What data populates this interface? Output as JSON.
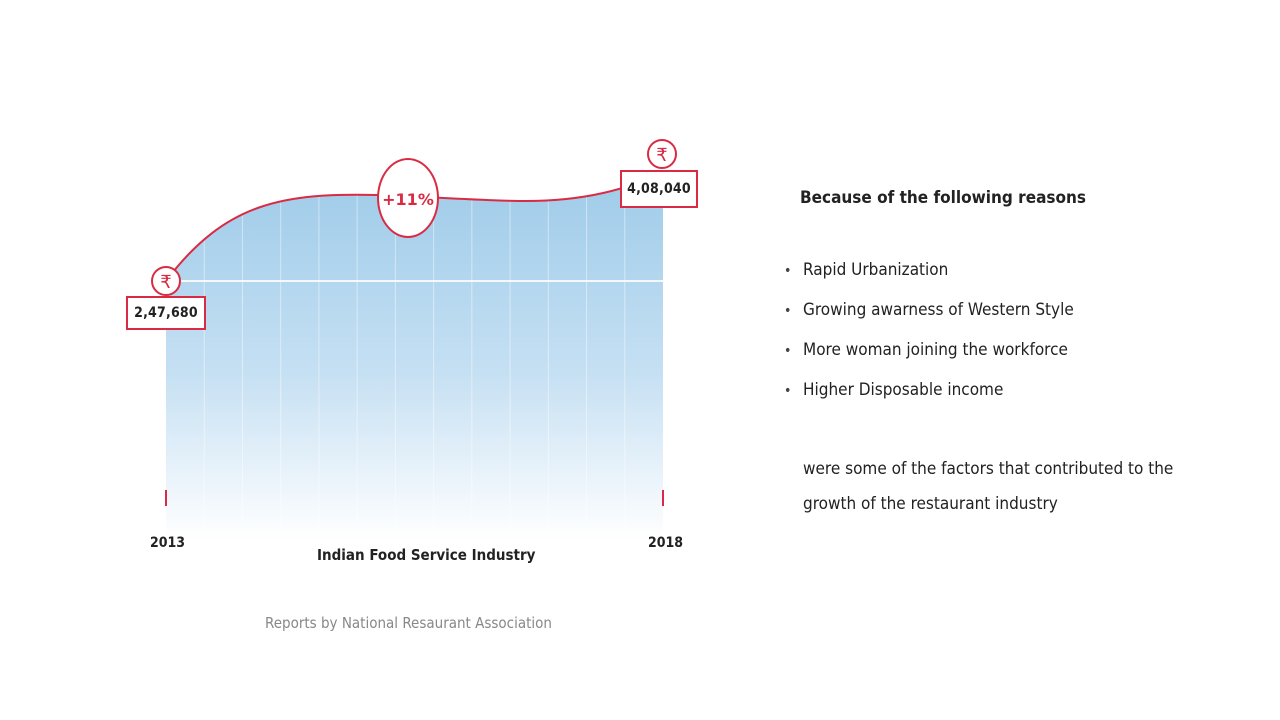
{
  "chart_data": {
    "type": "area",
    "title": "",
    "xlabel": "Indian Food Service Industry",
    "ylabel": "",
    "x": [
      "2013",
      "2018"
    ],
    "series": [
      {
        "values": [
          247680,
          408040
        ],
        "value_labels": [
          "2,47,680",
          "4,08,040"
        ]
      }
    ],
    "currency_symbol": "₹",
    "growth_label": "+11%",
    "grid": true,
    "colors": {
      "line": "#d92b43",
      "fill_top": "#9ecbe9",
      "fill_bottom": "#ffffff"
    }
  },
  "source_note": "Reports by National Resaurant Association",
  "reasons": {
    "heading": "Because of the following reasons",
    "bullet_symbol": "•",
    "items": [
      "Rapid Urbanization",
      "Growing awarness of Western Style",
      "More woman joining the workforce",
      "Higher Disposable income"
    ],
    "closing_line_1": "were some of the factors that contributed to the",
    "closing_line_2": "growth of the restaurant industry"
  }
}
